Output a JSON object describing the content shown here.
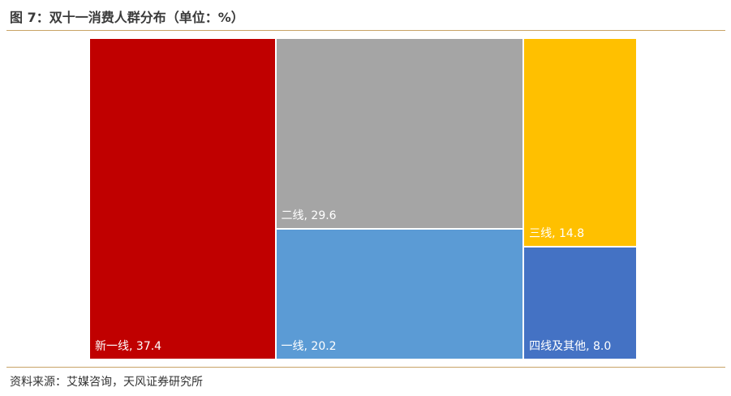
{
  "chart_data": {
    "type": "treemap",
    "title": "图 7：双十一消费人群分布（单位：%）",
    "source": "资料来源：艾媒咨询，天风证券研究所",
    "categories": [
      "新一线",
      "二线",
      "一线",
      "三线",
      "四线及其他"
    ],
    "values": [
      37.4,
      29.6,
      20.2,
      14.8,
      8
    ],
    "value_labels": [
      "37.4",
      "29.6",
      "20.2",
      "14.8",
      "8.0"
    ],
    "label_separator": ", ",
    "colors": [
      "#C00000",
      "#A5A5A5",
      "#5B9BD5",
      "#FFC000",
      "#4472C4"
    ]
  }
}
